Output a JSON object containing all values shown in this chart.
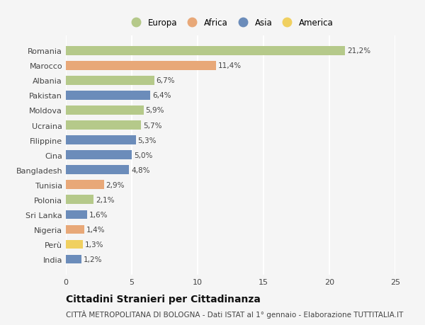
{
  "categories": [
    "India",
    "Perù",
    "Nigeria",
    "Sri Lanka",
    "Polonia",
    "Tunisia",
    "Bangladesh",
    "Cina",
    "Filippine",
    "Ucraina",
    "Moldova",
    "Pakistan",
    "Albania",
    "Marocco",
    "Romania"
  ],
  "values": [
    1.2,
    1.3,
    1.4,
    1.6,
    2.1,
    2.9,
    4.8,
    5.0,
    5.3,
    5.7,
    5.9,
    6.4,
    6.7,
    11.4,
    21.2
  ],
  "colors": [
    "#6b8cba",
    "#f0d060",
    "#e8a878",
    "#6b8cba",
    "#b5c98a",
    "#e8a878",
    "#6b8cba",
    "#6b8cba",
    "#6b8cba",
    "#b5c98a",
    "#b5c98a",
    "#6b8cba",
    "#b5c98a",
    "#e8a878",
    "#b5c98a"
  ],
  "labels": [
    "1,2%",
    "1,3%",
    "1,4%",
    "1,6%",
    "2,1%",
    "2,9%",
    "4,8%",
    "5,0%",
    "5,3%",
    "5,7%",
    "5,9%",
    "6,4%",
    "6,7%",
    "11,4%",
    "21,2%"
  ],
  "legend_labels": [
    "Europa",
    "Africa",
    "Asia",
    "America"
  ],
  "legend_colors": [
    "#b5c98a",
    "#e8a878",
    "#6b8cba",
    "#f0d060"
  ],
  "title": "Cittadini Stranieri per Cittadinanza",
  "subtitle": "CITTÀ METROPOLITANA DI BOLOGNA - Dati ISTAT al 1° gennaio - Elaborazione TUTTITALIA.IT",
  "xlim": [
    0,
    25
  ],
  "xticks": [
    0,
    5,
    10,
    15,
    20,
    25
  ],
  "background_color": "#f5f5f5",
  "grid_color": "#ffffff",
  "bar_height": 0.6,
  "title_fontsize": 10,
  "subtitle_fontsize": 7.5,
  "label_fontsize": 7.5,
  "tick_fontsize": 8,
  "legend_fontsize": 8.5
}
